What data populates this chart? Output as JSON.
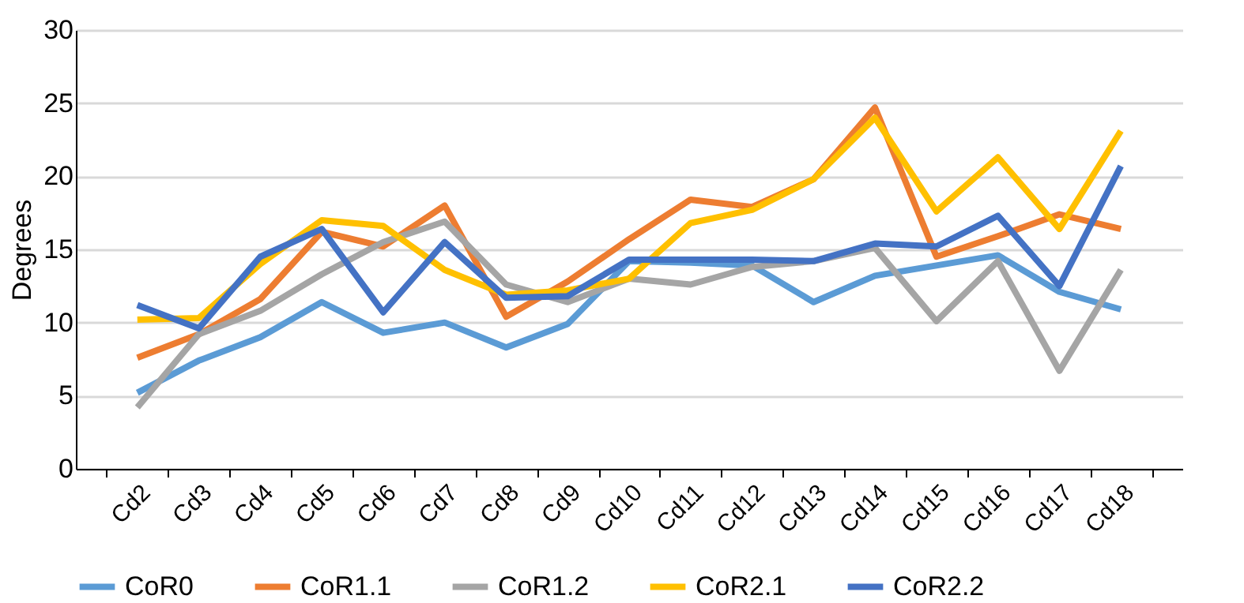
{
  "chart_data": {
    "type": "line",
    "ylabel": "Degrees",
    "categories": [
      "Cd2",
      "Cd3",
      "Cd4",
      "Cd5",
      "Cd6",
      "Cd7",
      "Cd8",
      "Cd9",
      "Cd10",
      "Cd11",
      "Cd12",
      "Cd13",
      "Cd14",
      "Cd15",
      "Cd16",
      "Cd17",
      "Cd18"
    ],
    "series": [
      {
        "name": "CoR0",
        "color": "#5b9bd5",
        "values": [
          5.2,
          7.4,
          9.0,
          11.4,
          9.3,
          10.0,
          8.3,
          9.9,
          14.2,
          14.1,
          13.9,
          11.4,
          13.2,
          13.9,
          14.6,
          12.1,
          10.9
        ]
      },
      {
        "name": "CoR1.1",
        "color": "#ed7d31",
        "values": [
          7.6,
          9.2,
          11.6,
          16.2,
          15.2,
          18.0,
          10.4,
          12.8,
          15.7,
          18.4,
          17.9,
          19.8,
          24.7,
          14.5,
          15.9,
          17.4,
          16.4
        ]
      },
      {
        "name": "CoR1.2",
        "color": "#a5a5a5",
        "values": [
          4.2,
          9.2,
          10.8,
          13.3,
          15.5,
          16.9,
          12.6,
          11.4,
          13.0,
          12.6,
          13.8,
          14.2,
          15.1,
          10.1,
          14.2,
          6.7,
          13.6
        ]
      },
      {
        "name": "CoR2.1",
        "color": "#ffc000",
        "values": [
          10.2,
          10.3,
          14.0,
          17.0,
          16.6,
          13.6,
          11.9,
          12.2,
          13.0,
          16.8,
          17.7,
          19.8,
          24.0,
          17.6,
          21.3,
          16.4,
          23.1
        ]
      },
      {
        "name": "CoR2.2",
        "color": "#4472c4",
        "values": [
          11.2,
          9.6,
          14.5,
          16.4,
          10.7,
          15.5,
          11.7,
          11.8,
          14.3,
          14.3,
          14.3,
          14.2,
          15.4,
          15.2,
          17.3,
          12.5,
          20.7
        ]
      }
    ],
    "ylim": [
      0,
      30
    ],
    "yticks": [
      0,
      5,
      10,
      15,
      20,
      25,
      30
    ],
    "grid": "y",
    "legend": "bottom"
  }
}
